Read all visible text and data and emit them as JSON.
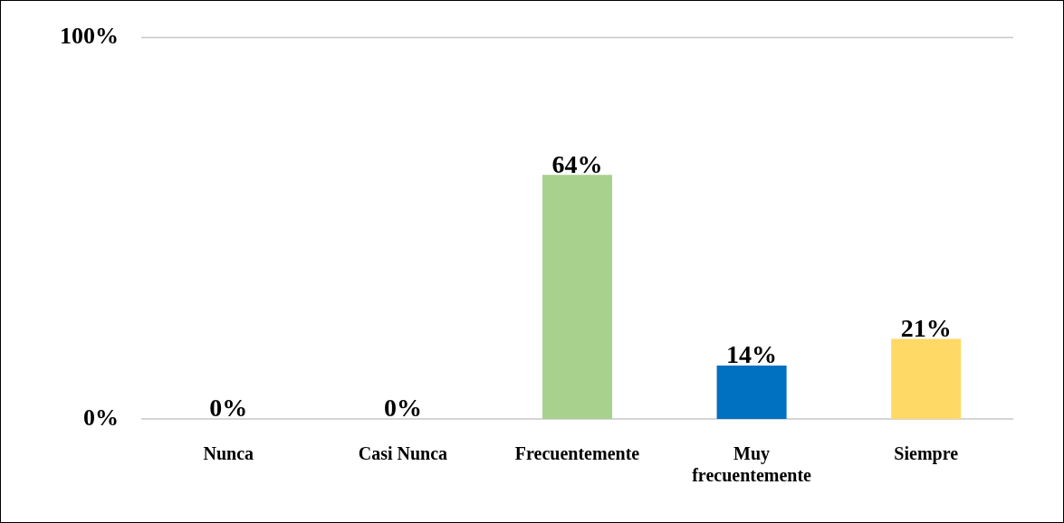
{
  "chart_data": {
    "type": "bar",
    "categories": [
      "Nunca",
      "Casi Nunca",
      "Frecuentemente",
      "Muy frecuentemente",
      "Siempre"
    ],
    "values": [
      0,
      0,
      64,
      14,
      21
    ],
    "colors": [
      "#990000",
      "#c0622a",
      "#a9d18e",
      "#0070c0",
      "#ffd966"
    ],
    "value_labels": [
      "0%",
      "0%",
      "64%",
      "14%",
      "21%"
    ],
    "ylim": [
      0,
      100
    ],
    "yticks": [
      {
        "value": 0,
        "label": "0%"
      },
      {
        "value": 100,
        "label": "100%"
      }
    ],
    "legend": false
  }
}
